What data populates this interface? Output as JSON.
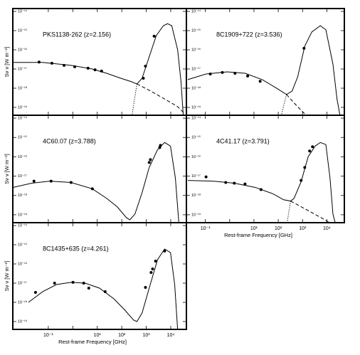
{
  "chart_data": [
    {
      "type": "sed",
      "title": "PKS1138-262 (z=2.156)",
      "ylabel": "Sν ν [W m⁻²]",
      "log_x": true,
      "log_y": true,
      "color": "#000000",
      "xlim": [
        0.00355,
        43650
      ],
      "ylim": [
        3.9e-20,
        1.41e-14
      ],
      "xticks": [
        0.1,
        1,
        10,
        100,
        1000,
        10000
      ],
      "yticks": [
        {
          "value": 1e-14,
          "label": "10⁻¹⁴"
        },
        {
          "value": 1e-15,
          "label": "10⁻¹⁵"
        },
        {
          "value": 1e-16,
          "label": "10⁻¹⁶"
        },
        {
          "value": 1e-17,
          "label": "10⁻¹⁷"
        },
        {
          "value": 1e-18,
          "label": "10⁻¹⁸"
        },
        {
          "value": 1e-19,
          "label": "10⁻¹⁹"
        }
      ],
      "points": {
        "x": [
          0.042,
          0.14,
          0.44,
          1.2,
          4.2,
          8.1,
          15,
          760,
          930,
          2100
        ],
        "y": [
          2.3e-17,
          2e-17,
          1.55e-17,
          1.3e-17,
          1.1e-17,
          9.1e-18,
          7.8e-18,
          3.3e-18,
          1.4e-17,
          5.1e-16
        ]
      },
      "curves": [
        {
          "style": "solid",
          "x": [
            0.00355,
            0.059,
            0.85,
            6.3,
            24,
            91,
            245,
            417,
            676,
            1320,
            2570,
            5010,
            7410,
            11000,
            19100,
            26300,
            32400
          ],
          "y": [
            2.2e-17,
            2.2e-17,
            1.55e-17,
            1e-17,
            6e-18,
            3.3e-18,
            2.2e-18,
            1.66e-18,
            3.3e-18,
            4.3e-17,
            5.5e-16,
            1.8e-15,
            2.3e-15,
            1.8e-15,
            1e-16,
            2.2e-18,
            3.9e-20
          ]
        },
        {
          "style": "dashed",
          "x": [
            417,
            1320,
            5010,
            19100,
            37200
          ],
          "y": [
            1.66e-18,
            7.8e-19,
            3e-19,
            1.1e-19,
            4.7e-20
          ]
        },
        {
          "style": "dotted",
          "x": [
            417,
            324,
            263
          ],
          "y": [
            1.66e-18,
            2.2e-19,
            3.9e-20
          ]
        }
      ]
    },
    {
      "type": "sed",
      "title": "8C1909+722 (z=3.536)",
      "log_x": true,
      "log_y": true,
      "color": "#000000",
      "xlim": [
        0.0166,
        52480
      ],
      "ylim": [
        3.9e-20,
        1.41e-14
      ],
      "xticks": [
        0.1,
        1,
        10,
        100,
        1000,
        10000
      ],
      "yticks": [
        {
          "value": 1e-14,
          "label": "10⁻¹⁴"
        },
        {
          "value": 1e-15,
          "label": "10⁻¹⁵"
        },
        {
          "value": 1e-16,
          "label": "10⁻¹⁶"
        },
        {
          "value": 1e-17,
          "label": "10⁻¹⁷"
        },
        {
          "value": 1e-18,
          "label": "10⁻¹⁸"
        },
        {
          "value": 1e-19,
          "label": "10⁻¹⁹"
        }
      ],
      "points": {
        "x": [
          0.16,
          0.5,
          1.66,
          5.5,
          18,
          1150
        ],
        "y": [
          5.5e-18,
          6.6e-18,
          6e-18,
          4.3e-18,
          2.3e-18,
          1.2e-16
        ]
      },
      "curves": [
        {
          "style": "solid",
          "x": [
            0.019,
            0.107,
            0.79,
            4.3,
            22,
            85,
            219,
            372,
            631,
            1230,
            2400,
            5370,
            9120,
            17800,
            26300,
            34700
          ],
          "y": [
            2.8e-18,
            5.5e-18,
            7.1e-18,
            6e-18,
            2.8e-18,
            1e-18,
            4.7e-19,
            7.1e-19,
            3.9e-18,
            1.55e-16,
            8.5e-16,
            1.8e-15,
            1.1e-15,
            1.8e-17,
            2.6e-19,
            3.9e-20
          ]
        },
        {
          "style": "dashed",
          "x": [
            219,
            457,
            871,
            1410
          ],
          "y": [
            4.7e-19,
            1.66e-19,
            7.1e-20,
            3.9e-20
          ]
        },
        {
          "style": "dotted",
          "x": [
            219,
            166,
            135
          ],
          "y": [
            4.7e-19,
            1.2e-19,
            3.9e-20
          ]
        }
      ]
    },
    {
      "type": "sed",
      "title": "4C60.07 (z=3.788)",
      "ylabel": "Sν ν [W m⁻²]",
      "log_x": true,
      "log_y": true,
      "color": "#000000",
      "xlim": [
        0.00355,
        43650
      ],
      "ylim": [
        3.9e-20,
        1.41e-14
      ],
      "xticks": [
        0.1,
        1,
        10,
        100,
        1000,
        10000
      ],
      "yticks": [
        {
          "value": 1e-14,
          "label": "10⁻¹⁴"
        },
        {
          "value": 1e-15,
          "label": "10⁻¹⁵"
        },
        {
          "value": 1e-16,
          "label": "10⁻¹⁶"
        },
        {
          "value": 1e-17,
          "label": "10⁻¹⁷"
        },
        {
          "value": 1e-18,
          "label": "10⁻¹⁸"
        },
        {
          "value": 1e-19,
          "label": "10⁻¹⁹"
        }
      ],
      "points": {
        "x": [
          0.026,
          0.13,
          0.85,
          6.3,
          1320,
          1480,
          3550,
          3800
        ],
        "y": [
          5.5e-18,
          5.5e-18,
          4.7e-18,
          2.2e-18,
          5.1e-17,
          7.1e-17,
          3e-16,
          3.9e-16
        ]
      },
      "curves": [
        {
          "style": "solid",
          "x": [
            0.00355,
            0.021,
            0.115,
            0.85,
            6.3,
            24,
            65,
            155,
            214,
            347,
            676,
            1320,
            2880,
            5620,
            9770,
            15500,
            21400
          ],
          "y": [
            2.6e-18,
            4.3e-18,
            5.5e-18,
            4.7e-18,
            2.2e-18,
            7.1e-19,
            2.6e-19,
            7.1e-20,
            5.5e-20,
            1.1e-19,
            1.4e-18,
            2.8e-17,
            2.3e-16,
            5.5e-16,
            3.6e-16,
            7.8e-18,
            3.9e-20
          ]
        }
      ]
    },
    {
      "type": "sed",
      "title": "4C41.17 (z=3.791)",
      "xlabel": "Rest-frame Frequency [GHz]",
      "log_x": true,
      "log_y": true,
      "color": "#000000",
      "xlim": [
        0.0166,
        52480
      ],
      "ylim": [
        3.9e-20,
        1.41e-14
      ],
      "xticks": [
        {
          "value": 0.1,
          "label": "10⁻¹"
        },
        1,
        {
          "value": 10,
          "label": "10¹"
        },
        {
          "value": 100,
          "label": "10²"
        },
        {
          "value": 1000,
          "label": "10³"
        },
        {
          "value": 10000,
          "label": "10⁴"
        }
      ],
      "yticks": [
        {
          "value": 1e-14,
          "label": "10⁻¹⁴"
        },
        {
          "value": 1e-15,
          "label": "10⁻¹⁵"
        },
        {
          "value": 1e-16,
          "label": "10⁻¹⁶"
        },
        {
          "value": 1e-17,
          "label": "10⁻¹⁷"
        },
        {
          "value": 1e-18,
          "label": "10⁻¹⁸"
        },
        {
          "value": 1e-19,
          "label": "10⁻¹⁹"
        }
      ],
      "points": {
        "x": [
          0.107,
          0.69,
          1.55,
          4.3,
          19.5,
          871,
          1230,
          1950,
          2570
        ],
        "y": [
          9.1e-18,
          4.7e-18,
          4.3e-18,
          3.9e-18,
          2e-18,
          6e-18,
          2.8e-17,
          2e-16,
          3.3e-16
        ]
      },
      "curves": [
        {
          "style": "solid",
          "x": [
            0.019,
            0.21,
            1.55,
            11.5,
            62,
            166,
            324,
            447,
            871,
            1700,
            3310,
            5370,
            9120,
            13500,
            17800,
            21900
          ],
          "y": [
            6e-18,
            5.5e-18,
            4.3e-18,
            2.6e-18,
            1.2e-18,
            6e-19,
            5.1e-19,
            7.1e-19,
            5.1e-18,
            1e-16,
            3.6e-16,
            5.5e-16,
            4.3e-16,
            7.8e-18,
            1.1e-19,
            3.9e-20
          ]
        },
        {
          "style": "dashed",
          "x": [
            324,
            871,
            2400,
            6460,
            12600
          ],
          "y": [
            5.1e-19,
            2.6e-19,
            1.3e-19,
            6.6e-20,
            3.9e-20
          ]
        },
        {
          "style": "dotted",
          "x": [
            324,
            263,
            234
          ],
          "y": [
            5.1e-19,
            1.1e-19,
            3.9e-20
          ]
        }
      ]
    },
    {
      "type": "sed",
      "title": "8C1435+635 (z=4.261)",
      "xlabel": "Rest-frame Frequency [GHz]",
      "ylabel": "Sν ν [W m⁻²]",
      "log_x": true,
      "log_y": true,
      "color": "#000000",
      "xlim": [
        0.00355,
        43650
      ],
      "ylim": [
        3.9e-20,
        1.41e-14
      ],
      "xticks": [
        {
          "value": 0.1,
          "label": "10⁻¹"
        },
        1,
        {
          "value": 10,
          "label": "10¹"
        },
        {
          "value": 100,
          "label": "10²"
        },
        {
          "value": 1000,
          "label": "10³"
        },
        {
          "value": 10000,
          "label": "10⁴"
        }
      ],
      "yticks": [
        {
          "value": 1e-14,
          "label": "10⁻¹⁴"
        },
        {
          "value": 1e-15,
          "label": "10⁻¹⁵"
        },
        {
          "value": 1e-16,
          "label": "10⁻¹⁶"
        },
        {
          "value": 1e-17,
          "label": "10⁻¹⁷"
        },
        {
          "value": 1e-18,
          "label": "10⁻¹⁸"
        },
        {
          "value": 1e-19,
          "label": "10⁻¹⁹"
        }
      ],
      "points": {
        "x": [
          0.03,
          0.18,
          1.02,
          2.8,
          4.5,
          21,
          930,
          1580,
          1820,
          2400,
          5620
        ],
        "y": [
          3.3e-18,
          1e-17,
          1.1e-17,
          1e-17,
          5.5e-18,
          3.6e-18,
          6e-18,
          3.6e-17,
          5.5e-17,
          1.4e-16,
          4.7e-16
        ]
      },
      "curves": [
        {
          "style": "solid",
          "x": [
            0.0155,
            0.059,
            0.22,
            0.85,
            3.2,
            12.3,
            47,
            126,
            302,
            417,
            676,
            1320,
            2880,
            5620,
            9770,
            14500,
            19100
          ],
          "y": [
            1e-18,
            3.6e-18,
            8.5e-18,
            1.1e-17,
            1e-17,
            5.5e-18,
            1.55e-18,
            4.3e-19,
            1.2e-19,
            1e-19,
            2.8e-19,
            5.5e-18,
            1.66e-16,
            6e-16,
            3.9e-16,
            8.5e-18,
            3.9e-20
          ]
        }
      ]
    }
  ]
}
